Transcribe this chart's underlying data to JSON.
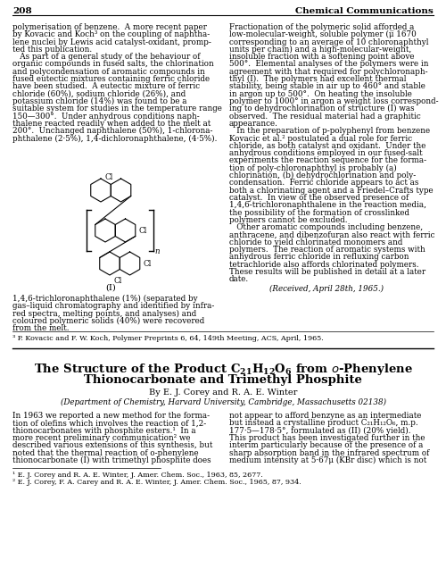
{
  "bg": "#ffffff",
  "page_num": "208",
  "journal": "Chemical Communications",
  "col1_upper": [
    "polymerisation of benzene.  A more recent paper",
    "by Kovacic and Koch³ on the coupling of naphtha-",
    "lene nuclei by Lewis acid catalyst-oxidant, promp-",
    "ted this publication.",
    "   As part of a general study of the behaviour of",
    "organic compounds in fused salts, the chlorination",
    "and polycondensation of aromatic compounds in",
    "fused eutectic mixtures containing ferric chloride",
    "have been studied.  A eutectic mixture of ferric",
    "chloride (60%), sodium chloride (26%), and",
    "potassium chloride (14%) was found to be a",
    "suitable system for studies in the temperature range",
    "150—300°.  Under anhydrous conditions naph-",
    "thalene reacted readily when added to the melt at",
    "200°.  Unchanged naphthalene (50%), 1-chlorona-",
    "phthalene (2·5%), 1,4-dichloronaphthalene, (4·5%)."
  ],
  "col1_lower": [
    "1,4,6-trichloronaphthalene (1%) (separated by",
    "gas–liquid chromatography and identified by infra-",
    "red spectra, melting points, and analyses) and",
    "coloured polymeric solids (40%) were recovered",
    "from the melt."
  ],
  "col2_upper": [
    "Fractionation of the polymeric solid afforded a",
    "low-molecular-weight, soluble polymer (μ̅ 1670",
    "corresponding to an average of 10 chloronaphthyl",
    "units per chain) and a high-molecular-weight,",
    "insoluble fraction with a softening point above",
    "500°.  Elemental analyses of the polymers were in",
    "agreement with that required for polychloronaph-",
    "thyl (I).  The polymers had excellent thermal",
    "stability, being stable in air up to 460° and stable",
    "in argon up to 500°.  On heating the insoluble",
    "polymer to 1000° in argon a weight loss correspond-",
    "ing to dehydrochlorination of structure (I) was",
    "observed.  The residual material had a graphitic",
    "appearance.",
    "   In the preparation of p-polyphenyl from benzene",
    "Kovacic et al.² postulated a dual role for ferric",
    "chloride, as both catalyst and oxidant.  Under the",
    "anhydrous conditions employed in our fused-salt",
    "experiments the reaction sequence for the forma-",
    "tion of poly-chloronaphthyl is probably (a)",
    "chlorination, (b) dehydrochlorination and poly-",
    "condensation.  Ferric chloride appears to act as",
    "both a chlorinating agent and a Friedel–Crafts type",
    "catalyst.  In view of the observed presence of",
    "1,4,6-trichloronaphthalene in the reaction media,",
    "the possibility of the formation of crosslinked",
    "polymers cannot be excluded.",
    "   Other aromatic compounds including benzene,",
    "anthracene, and dibenzofuran also react with ferric",
    "chloride to yield chlorinated monomers and",
    "polymers.  The reaction of aromatic systems with",
    "anhydrous ferric chloride in refluxing carbon",
    "tetrachloride also affords chlorinated polymers.",
    "These results will be published in detail at a later",
    "date."
  ],
  "received": "(Received, April 28th, 1965.)",
  "footnote_upper": "³ P. Kovacic and F. W. Koch, Polymer Preprints 6, 64, 149th Meeting, ACS, April, 1965.",
  "title1": "The Structure of the Product $\\mathdefault{C_{21}H_{12}O_6}$ from $o$-Phenylene",
  "title2": "Thionocarbonate and Trimethyl Phosphite",
  "authors": "By E. J. Cᴏʀᴇʏ and R. A. E. Wɪɴᴛᴇʀ",
  "affiliation": "(Department of Chemistry, Harvard University, Cambridge, Massachusetts 02138)",
  "body1_col1": [
    "In 1963 we reported a new method for the forma-",
    "tion of olefins which involves the reaction of 1,2-",
    "thionocarbonates with phosphite esters.¹  In a",
    "more recent preliminary communication² we",
    "described various extensions of this synthesis, but",
    "noted that the thermal reaction of o-phenylene",
    "thionocarbonate (I) with trimethyl phosphite does"
  ],
  "body1_col2": [
    "not appear to afford benzyne as an intermediate",
    "but instead a crystalline product C₂₁H₁₂O₆, m.p.",
    "177·5—178·5°, formulated as (II) (20% yield).",
    "This product has been investigated further in the",
    "interim particularly because of the presence of a",
    "sharp absorption band in the infrared spectrum of",
    "medium intensity at 5·67μ (KBr disc) which is not"
  ],
  "footnote1": "¹ E. J. Corey and R. A. E. Winter, J. Amer. Chem. Soc., 1963, 85, 2677.",
  "footnote2": "² E. J. Corey, F. A. Carey and R. A. E. Winter, J. Amer. Chem. Soc., 1965, 87, 934."
}
